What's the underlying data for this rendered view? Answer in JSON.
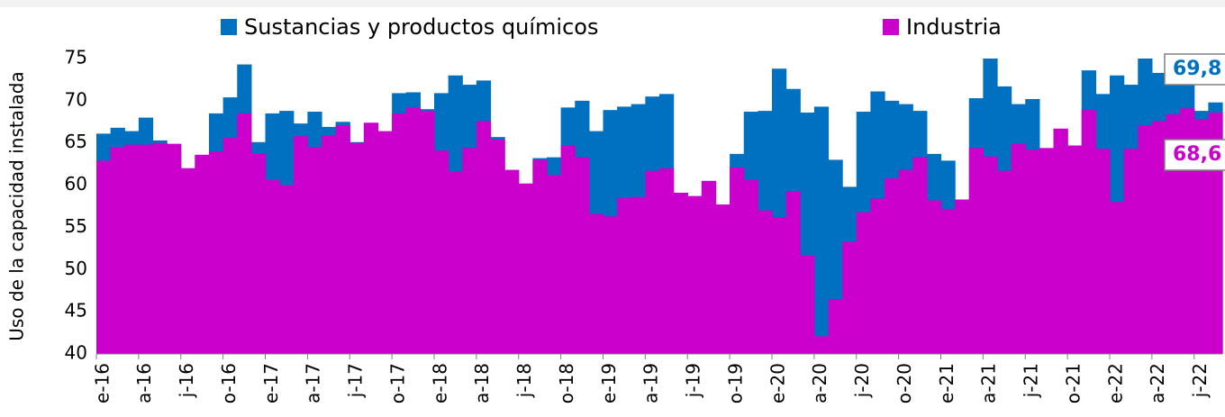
{
  "chart_data": {
    "type": "bar",
    "y_label": "Uso de la capacidad instalada",
    "categories": [
      "e-16",
      null,
      null,
      "a-16",
      null,
      null,
      "j-16",
      null,
      null,
      "o-16",
      null,
      null,
      "e-17",
      null,
      null,
      "a-17",
      null,
      null,
      "j-17",
      null,
      null,
      "o-17",
      null,
      null,
      "e-18",
      null,
      null,
      "a-18",
      null,
      null,
      "j-18",
      null,
      null,
      "o-18",
      null,
      null,
      "e-19",
      null,
      null,
      "a-19",
      null,
      null,
      "j-19",
      null,
      null,
      "o-19",
      null,
      null,
      "e-20",
      null,
      null,
      "a-20",
      null,
      null,
      "j-20",
      null,
      null,
      "o-20",
      null,
      null,
      "e-21",
      null,
      null,
      "a-21",
      null,
      null,
      "j-21",
      null,
      null,
      "o-21",
      null,
      null,
      "e-22",
      null,
      null,
      "a-22",
      null,
      null,
      "j-22",
      null
    ],
    "series": [
      {
        "name": "Sustancias y productos químicos",
        "color": "#0070c0",
        "values": [
          66.1,
          66.8,
          66.4,
          68.0,
          65.3,
          64.8,
          62.0,
          63.5,
          68.5,
          70.4,
          74.3,
          65.1,
          68.5,
          68.8,
          67.3,
          68.7,
          66.9,
          67.5,
          65.1,
          67.3,
          66.3,
          70.9,
          71.0,
          69.0,
          70.9,
          73.0,
          71.9,
          72.4,
          65.7,
          61.8,
          60.1,
          63.2,
          63.3,
          69.2,
          70.0,
          66.4,
          68.9,
          69.3,
          69.6,
          70.5,
          70.8,
          59.1,
          58.7,
          60.5,
          57.7,
          63.7,
          68.7,
          68.8,
          73.8,
          71.4,
          68.6,
          69.3,
          63.0,
          59.8,
          68.7,
          71.1,
          70.0,
          69.6,
          68.8,
          63.7,
          62.9,
          58.3,
          70.3,
          75.0,
          71.7,
          69.6,
          70.2,
          64.3,
          66.6,
          64.6,
          73.6,
          70.8,
          73.0,
          71.9,
          75.0,
          73.3,
          74.4,
          72.4,
          68.8,
          69.8
        ],
        "value_labels": [
          null,
          null,
          null,
          null,
          null,
          null,
          null,
          null,
          null,
          null,
          null,
          null,
          null,
          null,
          null,
          null,
          null,
          null,
          null,
          null,
          null,
          null,
          null,
          null,
          null,
          null,
          null,
          null,
          null,
          null,
          null,
          null,
          null,
          null,
          null,
          null,
          null,
          null,
          null,
          null,
          null,
          null,
          null,
          null,
          null,
          null,
          null,
          null,
          null,
          null,
          null,
          null,
          null,
          null,
          null,
          null,
          null,
          null,
          null,
          null,
          null,
          null,
          null,
          null,
          null,
          null,
          null,
          null,
          null,
          null,
          null,
          null,
          null,
          null,
          null,
          null,
          null,
          null,
          null,
          "69,8"
        ]
      },
      {
        "name": "Industria",
        "color": "#cc00cc",
        "values": [
          62.9,
          64.5,
          64.8,
          64.8,
          65.0,
          64.9,
          62.0,
          63.6,
          64.0,
          65.6,
          68.5,
          63.7,
          60.6,
          60.0,
          65.8,
          64.5,
          65.9,
          67.1,
          65.0,
          67.4,
          66.4,
          68.5,
          69.2,
          68.8,
          64.1,
          61.6,
          64.4,
          67.6,
          65.4,
          61.8,
          60.2,
          63.0,
          61.2,
          64.7,
          63.3,
          56.6,
          56.3,
          58.5,
          58.6,
          61.7,
          62.0,
          59.1,
          58.7,
          60.5,
          57.7,
          62.1,
          60.6,
          57.0,
          56.2,
          59.3,
          51.7,
          42.1,
          46.5,
          53.3,
          56.8,
          58.4,
          60.8,
          61.8,
          63.3,
          58.2,
          57.2,
          58.3,
          64.4,
          63.4,
          61.7,
          64.9,
          64.2,
          64.4,
          66.7,
          64.7,
          68.9,
          64.3,
          58.0,
          64.3,
          67.1,
          67.6,
          68.4,
          69.1,
          67.8,
          68.6
        ],
        "value_labels": [
          null,
          null,
          null,
          null,
          null,
          null,
          null,
          null,
          null,
          null,
          null,
          null,
          null,
          null,
          null,
          null,
          null,
          null,
          null,
          null,
          null,
          null,
          null,
          null,
          null,
          null,
          null,
          null,
          null,
          null,
          null,
          null,
          null,
          null,
          null,
          null,
          null,
          null,
          null,
          null,
          null,
          null,
          null,
          null,
          null,
          null,
          null,
          null,
          null,
          null,
          null,
          null,
          null,
          null,
          null,
          null,
          null,
          null,
          null,
          null,
          null,
          null,
          null,
          null,
          null,
          null,
          null,
          null,
          null,
          null,
          null,
          null,
          null,
          null,
          null,
          null,
          null,
          null,
          null,
          "68,6"
        ]
      }
    ],
    "ylim": [
      40,
      75
    ],
    "yticks": [
      40,
      45,
      50,
      55,
      60,
      65,
      70,
      75
    ],
    "grid": false
  }
}
